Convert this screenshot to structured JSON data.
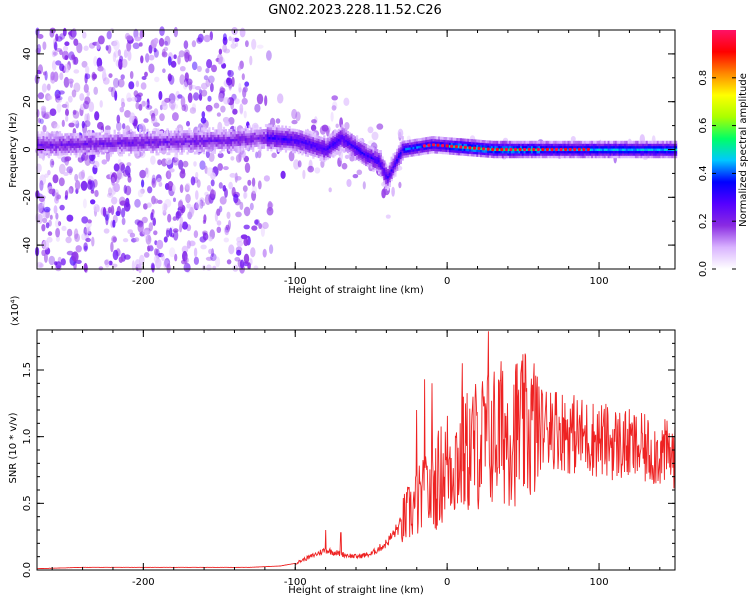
{
  "title": "GN02.2023.228.11.52.C26",
  "chart_data": [
    {
      "type": "heatmap",
      "title": "GN02.2023.228.11.52.C26",
      "xlabel": "Height of straight line (km)",
      "ylabel": "Frequency (Hz)",
      "xlim": [
        -270,
        150
      ],
      "ylim": [
        -50,
        50
      ],
      "xticks": [
        -200,
        -100,
        0,
        100
      ],
      "yticks": [
        -40,
        -20,
        0,
        20,
        40
      ],
      "colorbar": {
        "label": "Normalized spectral amplitude",
        "range": [
          0.0,
          1.0
        ],
        "ticks": [
          "0.0",
          "0.2",
          "0.4",
          "0.6",
          "0.8"
        ],
        "colors": [
          "#ffffff",
          "#d9b3ff",
          "#8a2be2",
          "#5500ff",
          "#0000ff",
          "#00c8ff",
          "#00ff66",
          "#aaff00",
          "#ffff00",
          "#ff8800",
          "#ff0000",
          "#ff1166"
        ]
      },
      "ridge": [
        {
          "x": -260,
          "f": 2
        },
        {
          "x": -200,
          "f": 3
        },
        {
          "x": -140,
          "f": 4
        },
        {
          "x": -120,
          "f": 5
        },
        {
          "x": -100,
          "f": 4
        },
        {
          "x": -80,
          "f": 0
        },
        {
          "x": -70,
          "f": 5
        },
        {
          "x": -55,
          "f": -2
        },
        {
          "x": -45,
          "f": -5
        },
        {
          "x": -40,
          "f": -12
        },
        {
          "x": -30,
          "f": 0
        },
        {
          "x": -10,
          "f": 2
        },
        {
          "x": 30,
          "f": 0
        },
        {
          "x": 80,
          "f": 0
        },
        {
          "x": 150,
          "f": 0
        }
      ]
    },
    {
      "type": "line",
      "xlabel": "Height of straight line (km)",
      "ylabel": "SNR (10 * v/v)",
      "ylabel_multiplier": "(x10⁴)",
      "xlim": [
        -270,
        150
      ],
      "ylim": [
        0,
        1.8
      ],
      "xticks": [
        -200,
        -100,
        0,
        100
      ],
      "yticks": [
        0.0,
        0.5,
        1.0,
        1.5
      ],
      "ytick_labels": [
        "0.0",
        "0.5",
        "1.0",
        "1.5"
      ],
      "color": "#ee2222",
      "series": [
        {
          "x": [
            -270,
            -240,
            -200,
            -160,
            -130,
            -110,
            -100,
            -90,
            -80,
            -70,
            -60,
            -50,
            -40,
            -30,
            -20,
            -10,
            0,
            10,
            20,
            30,
            40,
            50,
            60,
            70,
            80,
            90,
            100,
            110,
            120,
            130,
            140,
            150
          ],
          "values": [
            0.01,
            0.02,
            0.02,
            0.02,
            0.02,
            0.03,
            0.05,
            0.1,
            0.15,
            0.12,
            0.1,
            0.12,
            0.2,
            0.35,
            0.5,
            0.6,
            0.8,
            0.85,
            0.95,
            1.0,
            1.05,
            1.05,
            1.07,
            1.08,
            1.03,
            1.0,
            0.98,
            0.95,
            0.93,
            0.9,
            0.88,
            0.86
          ]
        }
      ],
      "spikes": [
        {
          "x": -80,
          "y": 0.3
        },
        {
          "x": -70,
          "y": 0.28
        },
        {
          "x": -20,
          "y": 1.2
        },
        {
          "x": -15,
          "y": 1.43
        },
        {
          "x": -10,
          "y": 1.4
        },
        {
          "x": 10,
          "y": 1.55
        },
        {
          "x": 27,
          "y": 1.79
        },
        {
          "x": 35,
          "y": 1.42
        },
        {
          "x": 68,
          "y": 1.33
        }
      ]
    }
  ]
}
